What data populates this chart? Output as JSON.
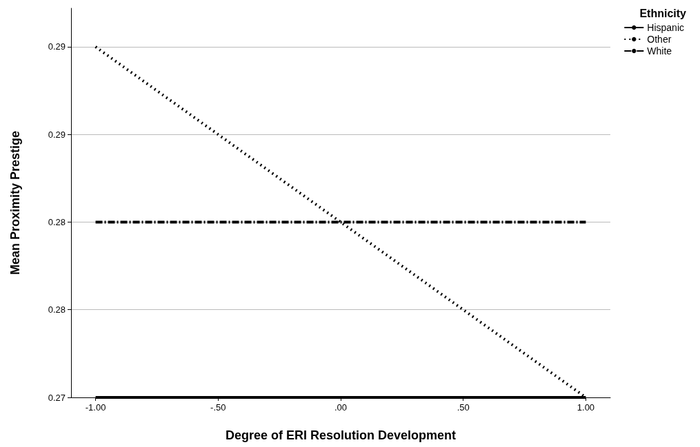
{
  "chart_data": {
    "type": "line",
    "xlabel": "Degree of ERI Resolution Development",
    "ylabel": "Mean Proximity Prestige",
    "legend_title": "Ethnicity",
    "x": [
      -1,
      1
    ],
    "series": [
      {
        "name": "Hispanic",
        "color": "#000000",
        "values": [
          0.27,
          0.27
        ],
        "line_style": "solid"
      },
      {
        "name": "Other",
        "color": "#000000",
        "values": [
          0.29,
          0.27
        ],
        "line_style": "dotted"
      },
      {
        "name": "White",
        "color": "#000000",
        "values": [
          0.28,
          0.28
        ],
        "line_style": "dashdot"
      }
    ],
    "xlim": [
      -1.1,
      1.1
    ],
    "xticks": [
      {
        "value": -1,
        "label": "-1.00"
      },
      {
        "value": -0.5,
        "label": "-.50"
      },
      {
        "value": 0,
        "label": ".00"
      },
      {
        "value": 0.5,
        "label": ".50"
      },
      {
        "value": 1,
        "label": "1.00"
      }
    ],
    "ylim": [
      0.27,
      0.2922
    ],
    "yticks": [
      {
        "value": 0.27,
        "label": "0.27"
      },
      {
        "value": 0.275,
        "label": "0.28"
      },
      {
        "value": 0.28,
        "label": "0.28"
      },
      {
        "value": 0.285,
        "label": "0.29"
      },
      {
        "value": 0.29,
        "label": "0.29"
      }
    ],
    "grid": "y",
    "legend": "top right",
    "marker": "none"
  }
}
